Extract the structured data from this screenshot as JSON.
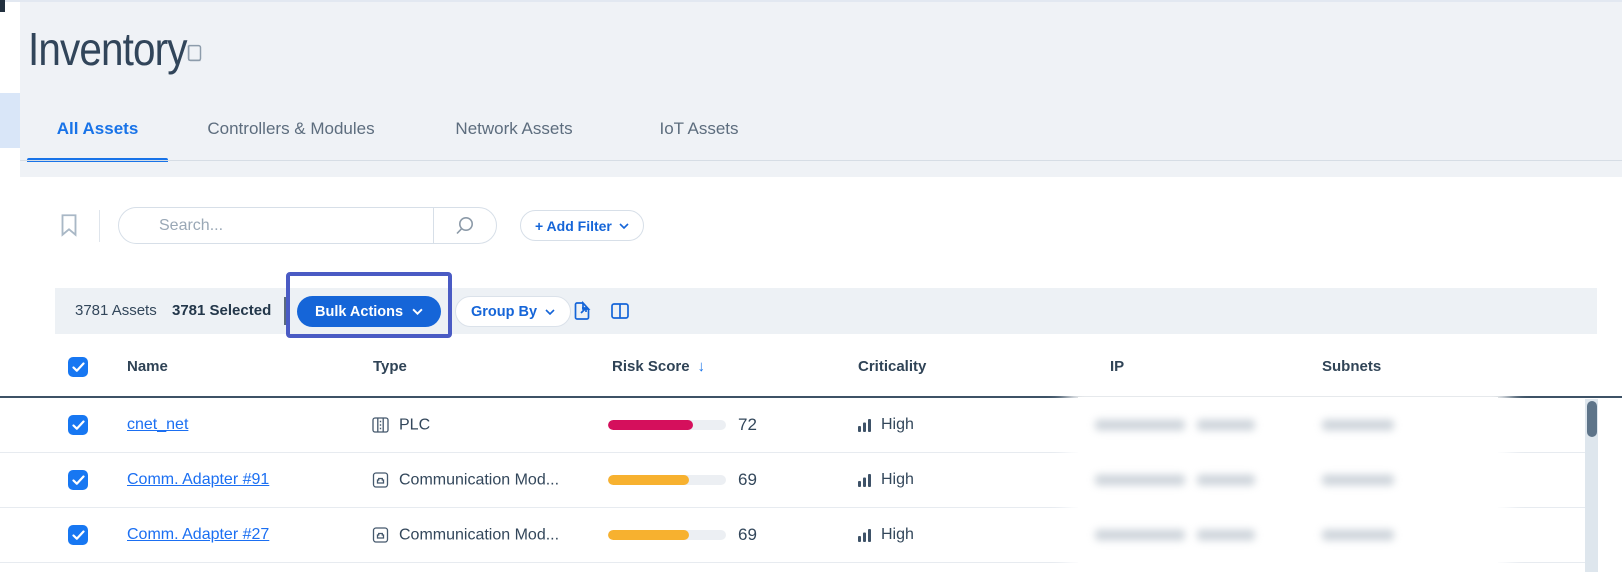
{
  "header": {
    "title": "Inventory"
  },
  "tabs": [
    {
      "label": "All Assets",
      "active": true
    },
    {
      "label": "Controllers & Modules",
      "active": false
    },
    {
      "label": "Network Assets",
      "active": false
    },
    {
      "label": "IoT Assets",
      "active": false
    }
  ],
  "filter_bar": {
    "search_placeholder": "Search...",
    "add_filter_label": "+ Add Filter"
  },
  "toolbar": {
    "assets_count": "3781 Assets",
    "selected_count": "3781 Selected",
    "bulk_actions_label": "Bulk Actions",
    "group_by_label": "Group By"
  },
  "annotation": {
    "highlight_color": "#4a5bc4",
    "highlighted_element": "Bulk Actions"
  },
  "table": {
    "columns": [
      "Name",
      "Type",
      "Risk Score",
      "Criticality",
      "IP",
      "Subnets"
    ],
    "sorted_by": "Risk Score",
    "sort_direction": "desc",
    "select_all_checked": true,
    "rows": [
      {
        "selected": true,
        "name": "cnet_net",
        "type": "PLC",
        "type_icon": "plc-icon",
        "risk_score": 72,
        "risk_color": "#d50f5c",
        "criticality": "High",
        "ip_redacted": true,
        "subnets_redacted": true
      },
      {
        "selected": true,
        "name": "Comm. Adapter #91",
        "type": "Communication Mod...",
        "type_icon": "comm-module-icon",
        "risk_score": 69,
        "risk_color": "#f7b12f",
        "criticality": "High",
        "ip_redacted": true,
        "subnets_redacted": true
      },
      {
        "selected": true,
        "name": "Comm. Adapter #27",
        "type": "Communication Mod...",
        "type_icon": "comm-module-icon",
        "risk_score": 69,
        "risk_color": "#f7b12f",
        "criticality": "High",
        "ip_redacted": true,
        "subnets_redacted": true
      }
    ]
  },
  "icons": {
    "title": "book-icon",
    "saved_views": "bookmark-icon",
    "search": "search-icon",
    "export": "export-icon",
    "columns": "columns-icon",
    "sort": "arrow-down-icon",
    "criticality": "bar-chart-icon",
    "plc": "plc-icon",
    "comm_module": "comm-module-icon",
    "chevron": "chevron-down-icon"
  },
  "colors": {
    "accent_blue": "#1565d8",
    "tab_active_blue": "#1873e8",
    "link_blue": "#1b6ff2",
    "risk_red": "#d50f5c",
    "risk_amber": "#f7b12f",
    "header_dark": "#2f4356",
    "toolbar_band": "#edf1f5",
    "page_gray": "#eff2f6"
  }
}
